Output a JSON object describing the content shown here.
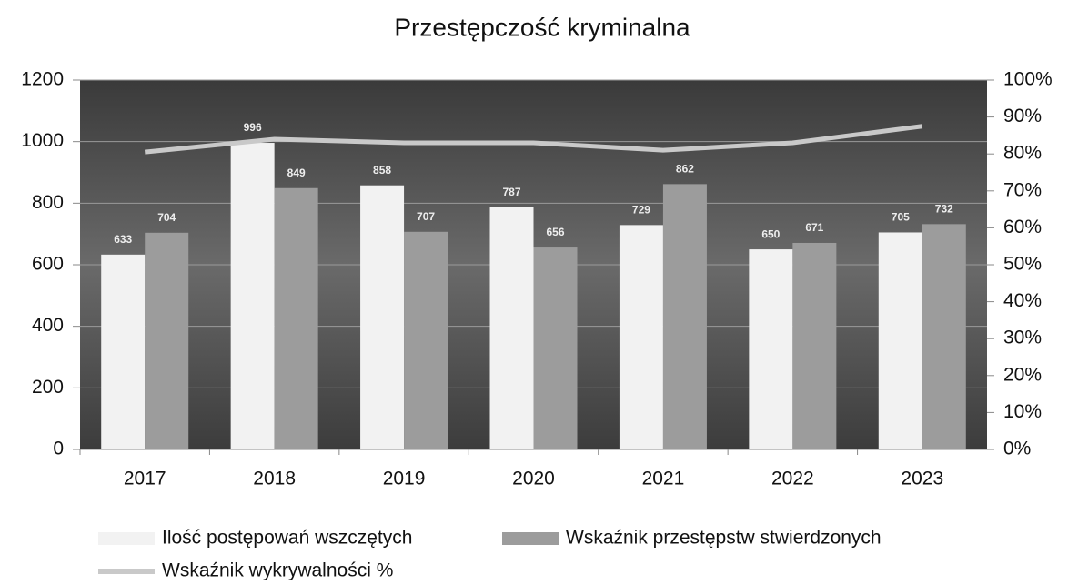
{
  "chart_data": {
    "type": "bar",
    "title": "Przestępczość kryminalna",
    "categories": [
      "2017",
      "2018",
      "2019",
      "2020",
      "2021",
      "2022",
      "2023"
    ],
    "series": [
      {
        "name": "Ilość postępowań wszczętych",
        "color": "#f2f2f2",
        "values": [
          633,
          996,
          858,
          787,
          729,
          650,
          705
        ]
      },
      {
        "name": "Wskaźnik przestępstw stwierdzonych",
        "color": "#9c9c9c",
        "values": [
          704,
          849,
          707,
          656,
          862,
          671,
          732
        ]
      },
      {
        "name": "Wskaźnik wykrywalności %",
        "color": "#c9c9c9",
        "type": "line",
        "axis": "y2",
        "values": [
          80.5,
          84,
          83,
          83,
          81,
          83,
          87.5
        ]
      }
    ],
    "ylim": [
      0,
      1200
    ],
    "yticks": [
      0,
      200,
      400,
      600,
      800,
      1000,
      1200
    ],
    "y2lim": [
      0,
      100
    ],
    "y2ticks": [
      {
        "value": 0,
        "label": "0%"
      },
      {
        "value": 10,
        "label": "10%"
      },
      {
        "value": 20,
        "label": "20%"
      },
      {
        "value": 30,
        "label": "30%"
      },
      {
        "value": 40,
        "label": "40%"
      },
      {
        "value": 50,
        "label": "50%"
      },
      {
        "value": 60,
        "label": "60%"
      },
      {
        "value": 70,
        "label": "70%"
      },
      {
        "value": 80,
        "label": "80%"
      },
      {
        "value": 90,
        "label": "90%"
      },
      {
        "value": 100,
        "label": "100%"
      }
    ],
    "grid": true
  }
}
